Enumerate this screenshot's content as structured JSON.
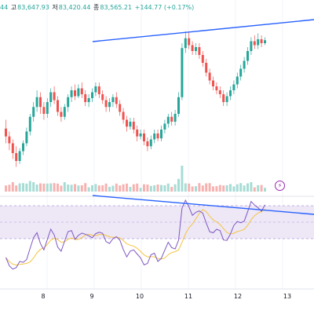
{
  "ohlc_bar": {
    "open_fragment": "44",
    "high_label": "고",
    "high_value": "83,647.93",
    "low_label": "저",
    "low_value": "83,420.44",
    "close_label": "종",
    "close_value": "83,565.21",
    "change": "+144.77 (+0.17%)"
  },
  "colors": {
    "up": "#26a69a",
    "down": "#ef5350",
    "trendline": "#2962ff",
    "rsi_line": "#7e57c2",
    "rsi_ma": "#f5c542",
    "rsi_band": "#ede7f6"
  },
  "icons": {
    "alert": "lightning-bolt-icon"
  },
  "chart_data": {
    "type": "candlestick",
    "x_ticks": [
      "8",
      "9",
      "10",
      "11",
      "12",
      "13"
    ],
    "candles": [
      [
        183,
        175,
        192,
        168
      ],
      [
        175,
        168,
        180,
        161
      ],
      [
        168,
        158,
        172,
        152
      ],
      [
        158,
        150,
        165,
        144
      ],
      [
        150,
        160,
        163,
        147
      ],
      [
        160,
        168,
        171,
        156
      ],
      [
        168,
        180,
        184,
        165
      ],
      [
        180,
        195,
        198,
        176
      ],
      [
        195,
        205,
        210,
        190
      ],
      [
        205,
        215,
        222,
        200
      ],
      [
        215,
        205,
        220,
        198
      ],
      [
        205,
        198,
        210,
        192
      ],
      [
        198,
        210,
        214,
        194
      ],
      [
        210,
        220,
        224,
        205
      ],
      [
        220,
        212,
        226,
        208
      ],
      [
        212,
        200,
        216,
        196
      ],
      [
        200,
        195,
        205,
        190
      ],
      [
        195,
        205,
        208,
        192
      ],
      [
        205,
        215,
        218,
        200
      ],
      [
        215,
        222,
        226,
        210
      ],
      [
        222,
        216,
        228,
        212
      ],
      [
        216,
        224,
        228,
        214
      ],
      [
        224,
        218,
        230,
        214
      ],
      [
        218,
        210,
        222,
        206
      ],
      [
        210,
        214,
        218,
        205
      ],
      [
        214,
        220,
        224,
        210
      ],
      [
        220,
        226,
        230,
        216
      ],
      [
        226,
        218,
        230,
        214
      ],
      [
        218,
        212,
        222,
        208
      ],
      [
        212,
        205,
        216,
        200
      ],
      [
        205,
        210,
        214,
        200
      ],
      [
        210,
        215,
        218,
        205
      ],
      [
        215,
        208,
        220,
        204
      ],
      [
        208,
        200,
        212,
        196
      ],
      [
        200,
        192,
        204,
        188
      ],
      [
        192,
        185,
        196,
        180
      ],
      [
        185,
        190,
        194,
        182
      ],
      [
        190,
        182,
        194,
        178
      ],
      [
        182,
        175,
        186,
        170
      ],
      [
        175,
        178,
        182,
        172
      ],
      [
        178,
        170,
        182,
        166
      ],
      [
        170,
        165,
        174,
        160
      ],
      [
        165,
        172,
        176,
        162
      ],
      [
        172,
        178,
        182,
        168
      ],
      [
        178,
        173,
        182,
        170
      ],
      [
        173,
        182,
        186,
        170
      ],
      [
        182,
        188,
        192,
        178
      ],
      [
        188,
        195,
        198,
        184
      ],
      [
        195,
        190,
        200,
        186
      ],
      [
        190,
        198,
        202,
        186
      ],
      [
        198,
        215,
        220,
        195
      ],
      [
        215,
        265,
        270,
        212
      ],
      [
        265,
        275,
        282,
        260
      ],
      [
        275,
        268,
        282,
        264
      ],
      [
        268,
        262,
        272,
        258
      ],
      [
        262,
        266,
        270,
        258
      ],
      [
        266,
        258,
        270,
        254
      ],
      [
        258,
        250,
        262,
        246
      ],
      [
        250,
        240,
        254,
        236
      ],
      [
        240,
        232,
        244,
        228
      ],
      [
        232,
        226,
        236,
        222
      ],
      [
        226,
        222,
        230,
        218
      ],
      [
        222,
        218,
        226,
        214
      ],
      [
        218,
        210,
        222,
        206
      ],
      [
        210,
        216,
        220,
        206
      ],
      [
        216,
        222,
        226,
        212
      ],
      [
        222,
        228,
        232,
        218
      ],
      [
        228,
        236,
        240,
        224
      ],
      [
        236,
        244,
        248,
        232
      ],
      [
        244,
        252,
        256,
        240
      ],
      [
        252,
        262,
        266,
        248
      ],
      [
        262,
        272,
        276,
        258
      ],
      [
        272,
        268,
        278,
        264
      ],
      [
        268,
        274,
        280,
        264
      ],
      [
        274,
        270,
        278,
        266
      ],
      [
        270,
        273,
        276,
        268
      ]
    ]
  }
}
